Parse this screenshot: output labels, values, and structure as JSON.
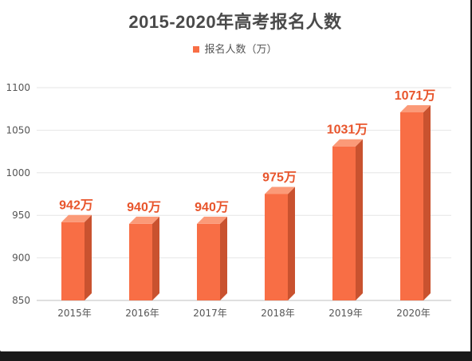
{
  "chart_data": {
    "type": "bar",
    "title": "2015-2020年高考报名人数",
    "legend": "报名人数（万）",
    "categories": [
      "2015年",
      "2016年",
      "2017年",
      "2018年",
      "2019年",
      "2020年"
    ],
    "series": [
      {
        "name": "报名人数（万）",
        "values": [
          942,
          940,
          940,
          975,
          1031,
          1071
        ]
      }
    ],
    "data_labels": [
      "942万",
      "940万",
      "940万",
      "975万",
      "1031万",
      "1071万"
    ],
    "yticks": [
      "850",
      "900",
      "950",
      "1000",
      "1050",
      "1100"
    ],
    "ylim": [
      850,
      1100
    ],
    "grid": true,
    "legend_position": "top",
    "colors": {
      "bar_front": "#f86e45",
      "bar_side": "#c9522f",
      "bar_top": "#fb9a78",
      "data_label": "#e8552c",
      "grid": "#e6e6e6",
      "axis": "#bfbfbf"
    }
  }
}
